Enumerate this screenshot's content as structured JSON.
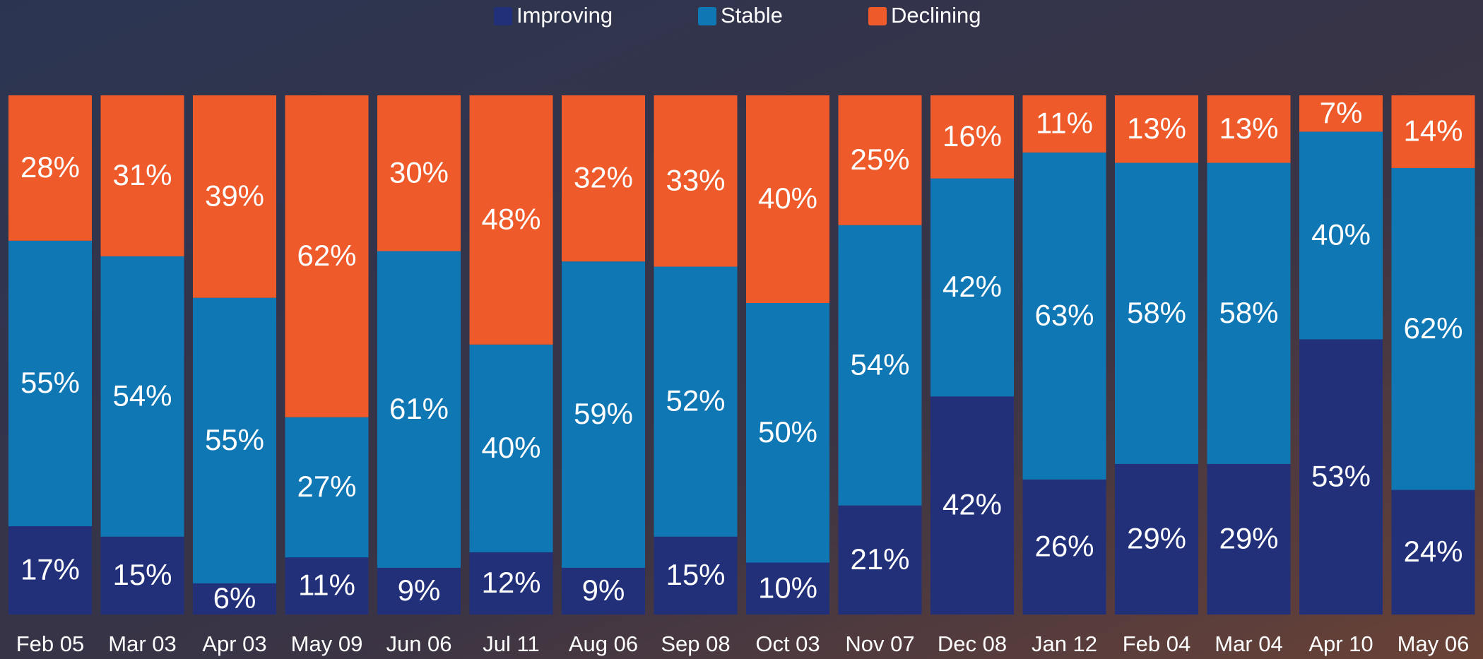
{
  "chart_data": {
    "type": "stacked_bar",
    "categories": [
      "Feb 05",
      "Mar 03",
      "Apr 03",
      "May 09",
      "Jun 06",
      "Jul 11",
      "Aug 06",
      "Sep 08",
      "Oct 03",
      "Nov 07",
      "Dec 08",
      "Jan 12",
      "Feb 04",
      "Mar 04",
      "Apr 10",
      "May 06"
    ],
    "ylim": [
      0,
      100
    ],
    "series": [
      {
        "name": "Improving",
        "color": "#22307a",
        "values": [
          17,
          15,
          6,
          11,
          9,
          12,
          9,
          15,
          10,
          21,
          42,
          26,
          29,
          29,
          53,
          24
        ],
        "value_labels": [
          "17%",
          "15%",
          "6%",
          "11%",
          "9%",
          "12%",
          "9%",
          "15%",
          "10%",
          "21%",
          "42%",
          "26%",
          "29%",
          "29%",
          "53%",
          "24%"
        ]
      },
      {
        "name": "Stable",
        "color": "#1077b5",
        "values": [
          55,
          54,
          55,
          27,
          61,
          40,
          59,
          52,
          50,
          54,
          42,
          63,
          58,
          58,
          40,
          62
        ],
        "value_labels": [
          "55%",
          "54%",
          "55%",
          "27%",
          "61%",
          "40%",
          "59%",
          "52%",
          "50%",
          "54%",
          "42%",
          "63%",
          "58%",
          "58%",
          "40%",
          "62%"
        ]
      },
      {
        "name": "Declining",
        "color": "#ef5a2a",
        "values": [
          28,
          31,
          39,
          62,
          30,
          48,
          32,
          33,
          40,
          25,
          16,
          11,
          13,
          13,
          7,
          14
        ],
        "value_labels": [
          "28%",
          "31%",
          "39%",
          "62%",
          "30%",
          "48%",
          "32%",
          "33%",
          "40%",
          "25%",
          "16%",
          "11%",
          "13%",
          "13%",
          "7%",
          "14%"
        ]
      }
    ]
  }
}
